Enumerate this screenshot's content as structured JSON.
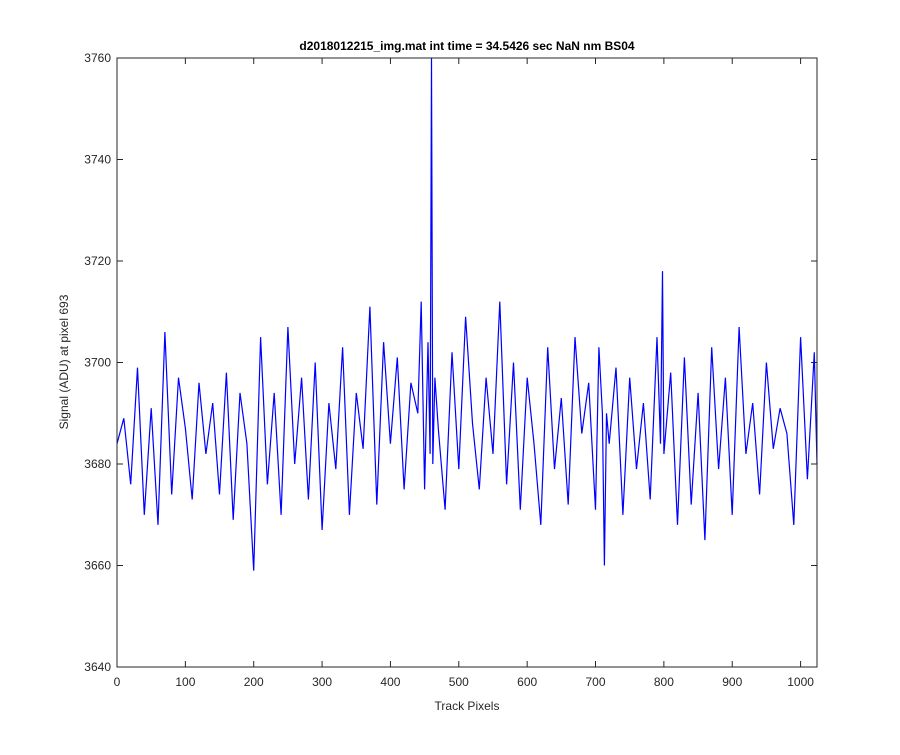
{
  "chart_data": {
    "type": "line",
    "title": "d2018012215_img.mat int time = 34.5426 sec  NaN nm BS04",
    "xlabel": "Track Pixels",
    "ylabel": "Signal (ADU) at pixel 693",
    "xlim": [
      0,
      1024
    ],
    "ylim": [
      3640,
      3760
    ],
    "xticks": [
      0,
      100,
      200,
      300,
      400,
      500,
      600,
      700,
      800,
      900,
      1000
    ],
    "yticks": [
      3640,
      3660,
      3680,
      3700,
      3720,
      3740,
      3760
    ],
    "grid": false,
    "legend": "none",
    "series": [
      {
        "color": "#0000ff",
        "x": [
          0,
          10,
          20,
          30,
          40,
          50,
          60,
          70,
          80,
          90,
          100,
          110,
          120,
          130,
          140,
          150,
          160,
          170,
          180,
          190,
          200,
          210,
          220,
          230,
          240,
          250,
          260,
          270,
          280,
          290,
          300,
          310,
          320,
          330,
          340,
          350,
          360,
          370,
          380,
          390,
          400,
          410,
          420,
          430,
          440,
          445,
          450,
          455,
          458,
          460,
          462,
          465,
          470,
          480,
          490,
          500,
          510,
          520,
          530,
          540,
          550,
          560,
          570,
          580,
          590,
          600,
          610,
          620,
          630,
          640,
          650,
          660,
          670,
          680,
          690,
          700,
          705,
          710,
          713,
          716,
          720,
          730,
          740,
          750,
          760,
          770,
          780,
          790,
          795,
          798,
          800,
          810,
          820,
          830,
          840,
          850,
          860,
          870,
          880,
          890,
          900,
          910,
          920,
          930,
          940,
          950,
          960,
          970,
          980,
          990,
          1000,
          1010,
          1020,
          1024
        ],
        "y": [
          3684,
          3689,
          3676,
          3699,
          3670,
          3691,
          3668,
          3706,
          3674,
          3697,
          3687,
          3673,
          3696,
          3682,
          3692,
          3674,
          3698,
          3669,
          3694,
          3684,
          3659,
          3705,
          3676,
          3694,
          3670,
          3707,
          3680,
          3697,
          3673,
          3700,
          3667,
          3692,
          3679,
          3703,
          3670,
          3694,
          3683,
          3711,
          3672,
          3704,
          3684,
          3701,
          3675,
          3696,
          3690,
          3712,
          3675,
          3704,
          3682,
          3760,
          3680,
          3697,
          3687,
          3671,
          3702,
          3679,
          3709,
          3688,
          3675,
          3697,
          3682,
          3712,
          3676,
          3700,
          3671,
          3697,
          3684,
          3668,
          3703,
          3679,
          3693,
          3672,
          3705,
          3686,
          3696,
          3671,
          3703,
          3690,
          3660,
          3690,
          3684,
          3699,
          3670,
          3697,
          3679,
          3692,
          3673,
          3705,
          3684,
          3718,
          3682,
          3698,
          3668,
          3701,
          3672,
          3694,
          3665,
          3703,
          3679,
          3697,
          3670,
          3707,
          3682,
          3692,
          3674,
          3700,
          3683,
          3691,
          3686,
          3668,
          3705,
          3677,
          3702,
          3680
        ]
      }
    ]
  }
}
